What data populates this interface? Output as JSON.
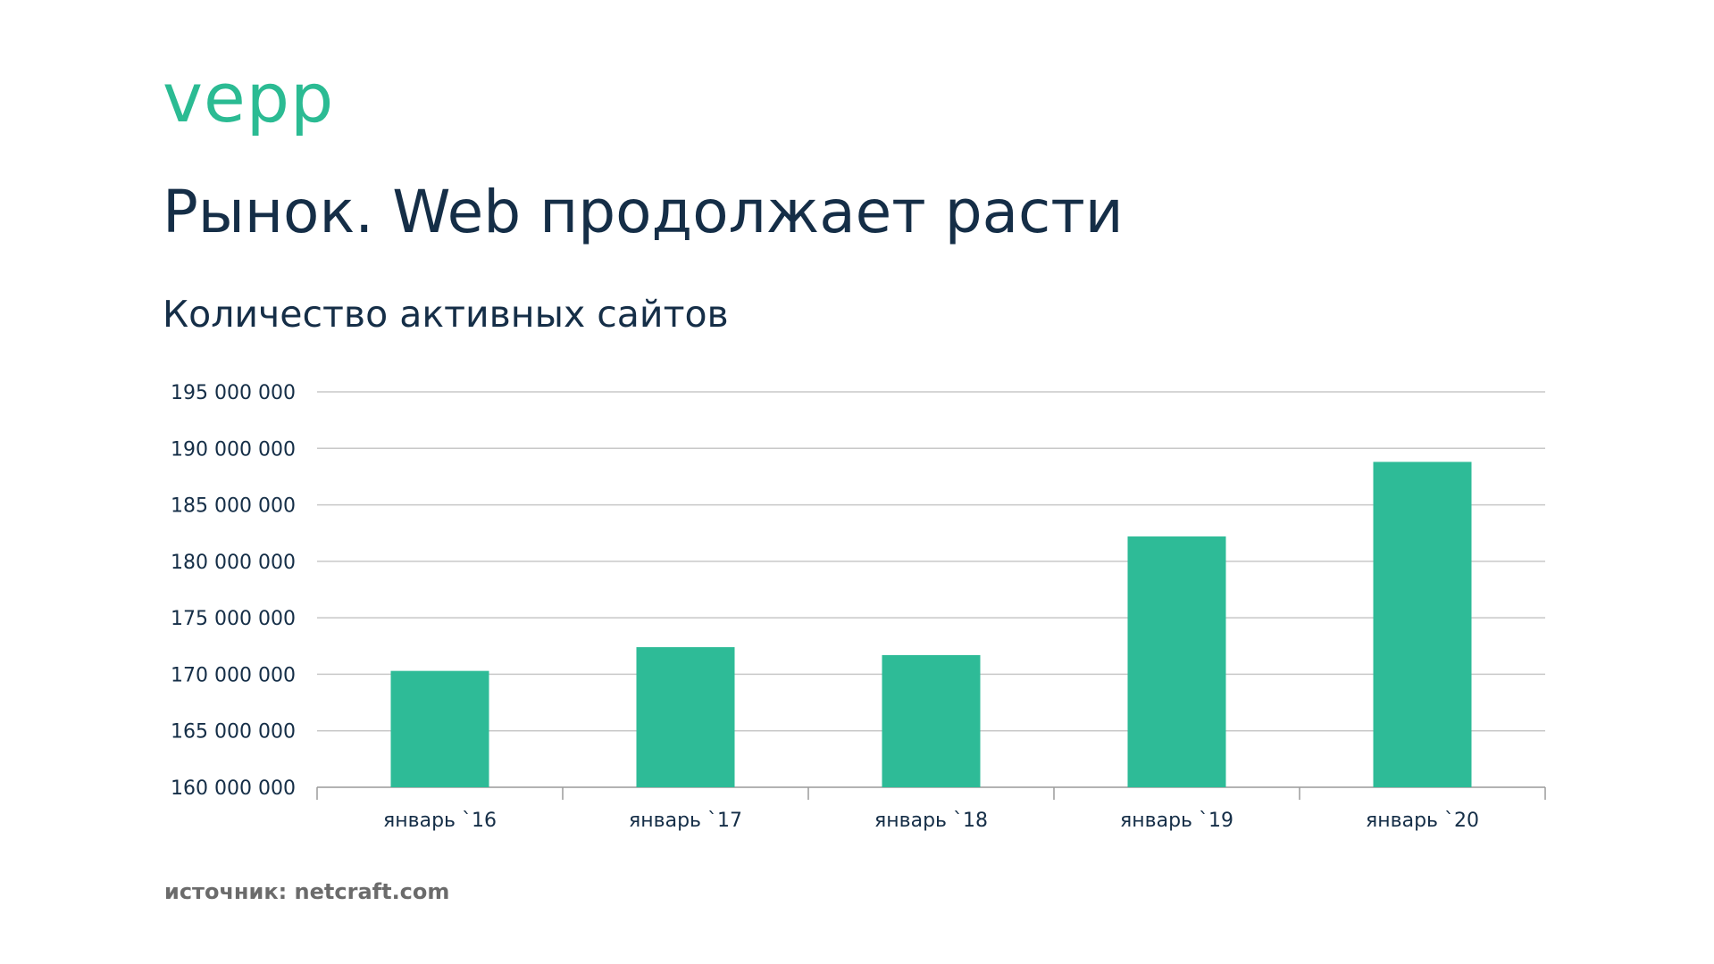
{
  "brand": {
    "logo_text": "vepp",
    "accent_color": "#2bbb93",
    "text_color": "#152e47"
  },
  "slide": {
    "title": "Рынок. Web продолжает расти",
    "subtitle": "Количество активных сайтов",
    "source": "источник: netcraft.com"
  },
  "chart_data": {
    "type": "bar",
    "title": "",
    "xlabel": "",
    "ylabel": "",
    "categories": [
      "январь `16",
      "январь `17",
      "январь `18",
      "январь `19",
      "январь `20"
    ],
    "values": [
      170300000,
      172400000,
      171700000,
      182200000,
      188800000
    ],
    "ylim": [
      160000000,
      195000000
    ],
    "yticks": [
      160000000,
      165000000,
      170000000,
      175000000,
      180000000,
      185000000,
      190000000,
      195000000
    ],
    "ytick_labels": [
      "160 000 000",
      "165 000 000",
      "170 000 000",
      "175 000 000",
      "180 000 000",
      "185 000 000",
      "190 000 000",
      "195 000 000"
    ],
    "grid": true,
    "legend": false,
    "bar_color": "#2ebb97",
    "grid_color": "#c8c8c8"
  }
}
